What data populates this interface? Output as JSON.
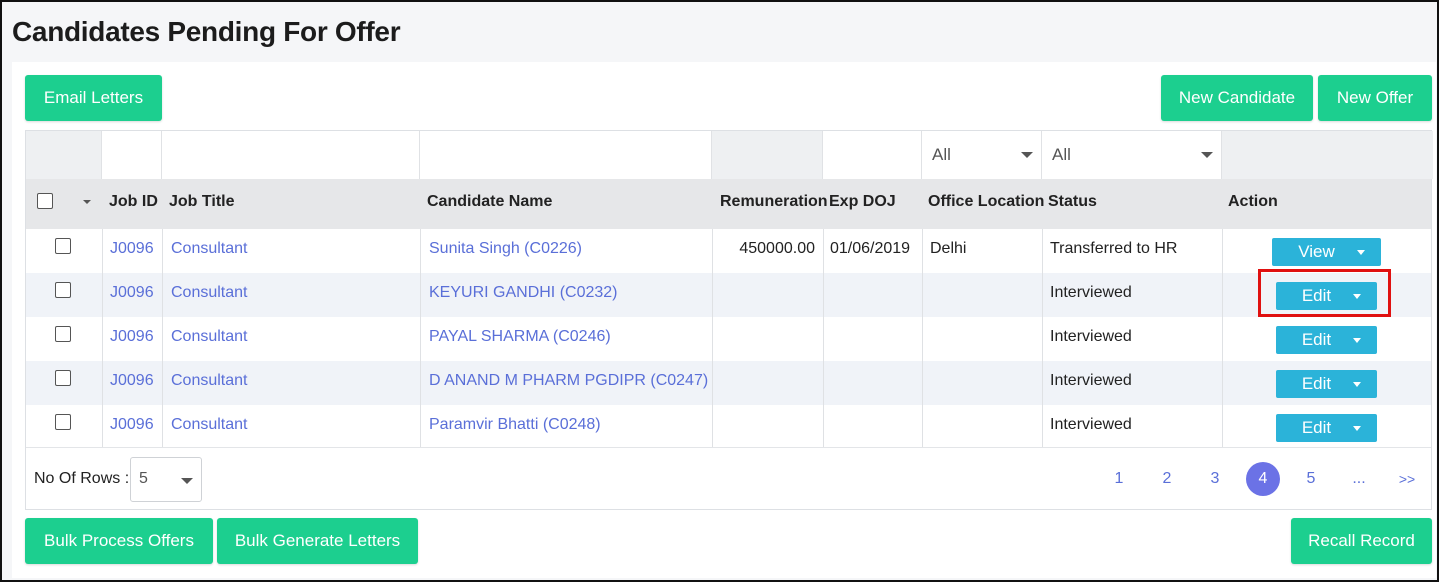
{
  "page": {
    "title": "Candidates Pending For Offer"
  },
  "toolbar": {
    "email_letters": "Email Letters",
    "new_candidate": "New Candidate",
    "new_offer": "New Offer"
  },
  "filters": {
    "office_location": "All",
    "status": "All"
  },
  "columns": {
    "job_id": "Job ID",
    "job_title": "Job Title",
    "candidate_name": "Candidate Name",
    "remuneration": "Remuneration",
    "exp_doj": "Exp DOJ",
    "office_location": "Office Location",
    "status": "Status",
    "action": "Action"
  },
  "rows": [
    {
      "job_id": "J0096",
      "job_title": "Consultant",
      "candidate": "Sunita Singh (C0226)",
      "remuneration": "450000.00",
      "exp_doj": "01/06/2019",
      "office_location": "Delhi",
      "status": "Transferred to HR",
      "action": "View"
    },
    {
      "job_id": "J0096",
      "job_title": "Consultant",
      "candidate": "KEYURI GANDHI (C0232)",
      "remuneration": "",
      "exp_doj": "",
      "office_location": "",
      "status": "Interviewed",
      "action": "Edit"
    },
    {
      "job_id": "J0096",
      "job_title": "Consultant",
      "candidate": "PAYAL SHARMA (C0246)",
      "remuneration": "",
      "exp_doj": "",
      "office_location": "",
      "status": "Interviewed",
      "action": "Edit"
    },
    {
      "job_id": "J0096",
      "job_title": "Consultant",
      "candidate": "D ANAND M PHARM PGDIPR (C0247)",
      "remuneration": "",
      "exp_doj": "",
      "office_location": "",
      "status": "Interviewed",
      "action": "Edit"
    },
    {
      "job_id": "J0096",
      "job_title": "Consultant",
      "candidate": "Paramvir Bhatti (C0248)",
      "remuneration": "",
      "exp_doj": "",
      "office_location": "",
      "status": "Interviewed",
      "action": "Edit"
    }
  ],
  "footer": {
    "rows_label": "No Of Rows :",
    "rows_value": "5",
    "pages": [
      "1",
      "2",
      "3",
      "4",
      "5",
      "...",
      ">>"
    ],
    "active_page": "4"
  },
  "bottom_bar": {
    "bulk_process": "Bulk Process Offers",
    "bulk_generate": "Bulk Generate Letters",
    "recall": "Recall Record"
  },
  "colors": {
    "primary_green": "#1ccf8f",
    "action_blue": "#2bb3d9",
    "link": "#5a6fd8",
    "highlight_red": "#e01010"
  }
}
